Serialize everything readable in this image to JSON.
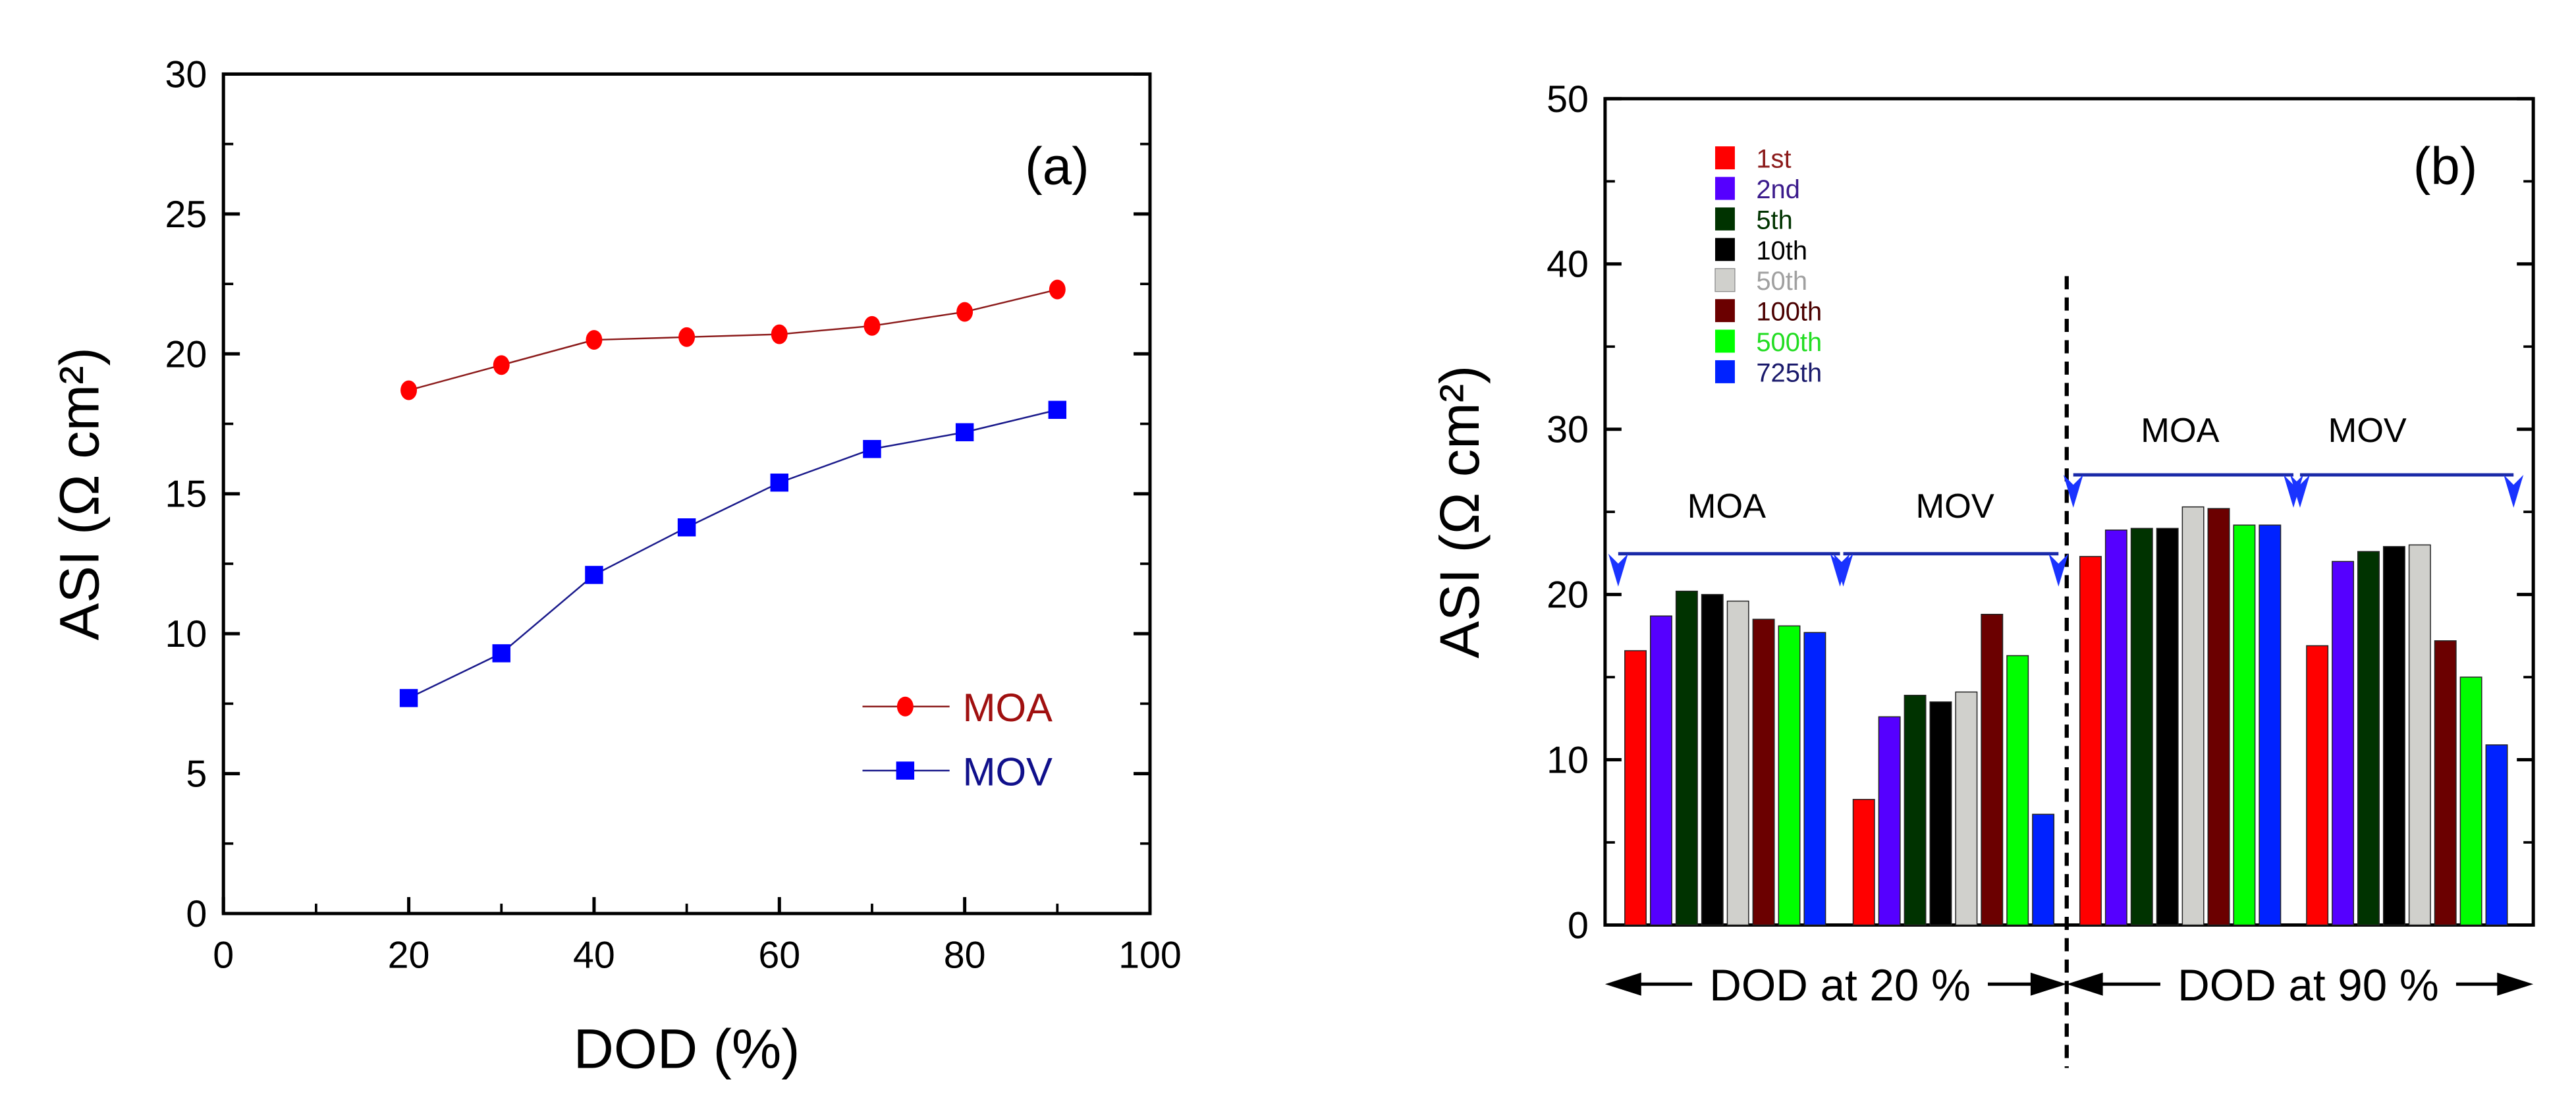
{
  "chart_data": [
    {
      "type": "line",
      "panel_label": "(a)",
      "xlabel": "DOD (%)",
      "ylabel": "ASI (Ω cm²)",
      "xlim": [
        0,
        100
      ],
      "ylim": [
        0,
        30
      ],
      "xticks": [
        "0",
        "20",
        "40",
        "60",
        "80",
        "100"
      ],
      "yticks": [
        "0",
        "5",
        "10",
        "15",
        "20",
        "25",
        "30"
      ],
      "grid": false,
      "legend_position": "bottom-right",
      "x": [
        20,
        30,
        40,
        50,
        60,
        70,
        80,
        90
      ],
      "series": [
        {
          "name": "MOA",
          "marker": "circle",
          "color": "#ff0000",
          "line_color": "#8b1a1a",
          "label_color": "#a01010",
          "values": [
            18.7,
            19.6,
            20.5,
            20.6,
            20.7,
            21.0,
            21.5,
            22.3
          ]
        },
        {
          "name": "MOV",
          "marker": "square",
          "color": "#0000ff",
          "line_color": "#1a1a8b",
          "label_color": "#10108b",
          "values": [
            7.7,
            9.3,
            12.1,
            13.8,
            15.4,
            16.6,
            17.2,
            18.0
          ]
        }
      ]
    },
    {
      "type": "bar",
      "panel_label": "(b)",
      "ylabel": "ASI (Ω cm²)",
      "ylim": [
        0,
        50
      ],
      "yticks": [
        "0",
        "10",
        "20",
        "30",
        "40",
        "50"
      ],
      "grid": false,
      "legend_position": "top-left",
      "cycles": [
        {
          "name": "1st",
          "color": "#ff0000",
          "label_color": "#8b1a1a"
        },
        {
          "name": "2nd",
          "color": "#5500ff",
          "label_color": "#3a1a8b"
        },
        {
          "name": "5th",
          "color": "#003300",
          "label_color": "#003300"
        },
        {
          "name": "10th",
          "color": "#000000",
          "label_color": "#000000"
        },
        {
          "name": "50th",
          "color": "#d0d0cc",
          "label_color": "#a0a0a0"
        },
        {
          "name": "100th",
          "color": "#6b0000",
          "label_color": "#4a0000"
        },
        {
          "name": "500th",
          "color": "#00ff00",
          "label_color": "#22dd22"
        },
        {
          "name": "725th",
          "color": "#0022ff",
          "label_color": "#1a1a6b"
        }
      ],
      "groups": [
        {
          "label": "MOA",
          "dod": "DOD at 20 %",
          "values": [
            16.6,
            18.7,
            20.2,
            20.0,
            19.6,
            18.5,
            18.1,
            17.7
          ]
        },
        {
          "label": "MOV",
          "dod": "DOD at 20 %",
          "values": [
            7.6,
            12.6,
            13.9,
            13.5,
            14.1,
            18.8,
            16.3,
            6.7
          ]
        },
        {
          "label": "MOA",
          "dod": "DOD at 90 %",
          "values": [
            22.3,
            23.9,
            24.0,
            24.0,
            25.3,
            25.2,
            24.2,
            24.2
          ]
        },
        {
          "label": "MOV",
          "dod": "DOD at 90 %",
          "values": [
            16.9,
            22.0,
            22.6,
            22.9,
            23.0,
            17.2,
            15.0,
            10.9
          ]
        }
      ],
      "dod_labels": [
        "DOD at 20 %",
        "DOD at 90 %"
      ]
    }
  ]
}
